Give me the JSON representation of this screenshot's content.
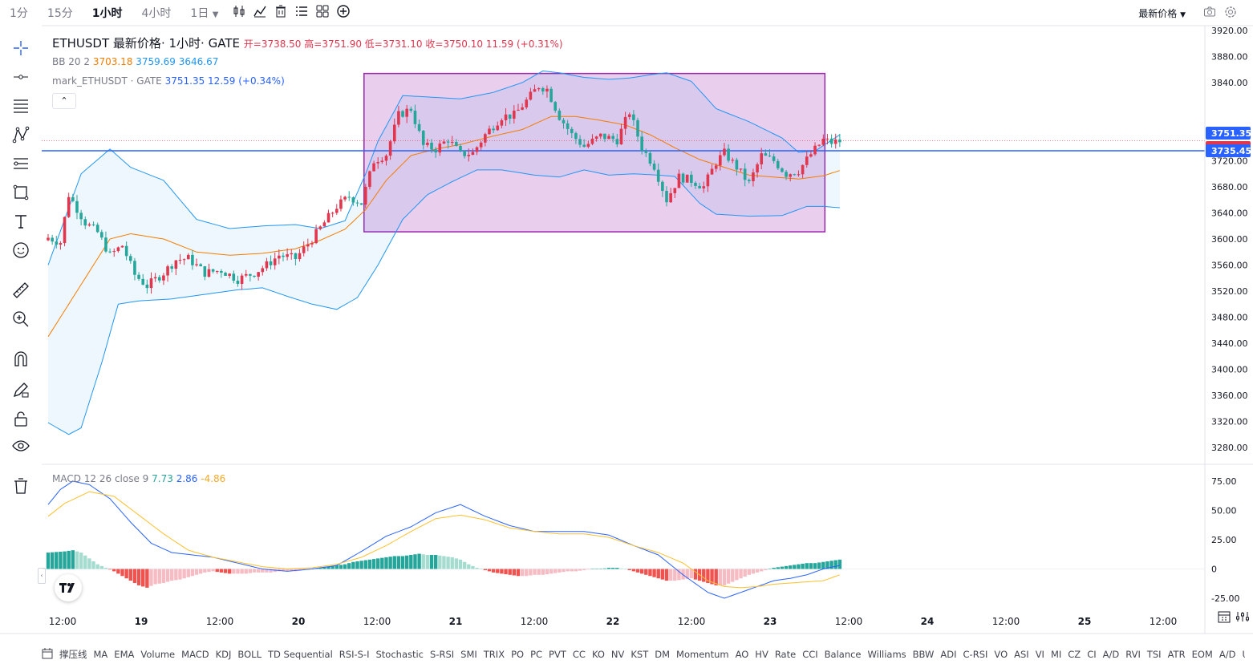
{
  "toolbar": {
    "intervals": [
      "1分",
      "15分",
      "1小时",
      "4小时",
      "1日"
    ],
    "active_interval": "1小时",
    "price_type": "最新价格"
  },
  "legend": {
    "symbol": "ETHUSDT",
    "price_kind": "最新价格",
    "interval": "1小时",
    "exchange": "GATE",
    "open": "开=3738.50",
    "high": "高=3751.90",
    "low": "低=3731.10",
    "close": "收=3750.10",
    "change": "11.59 (+0.31%)",
    "bb_label": "BB 20 2",
    "bb_mid": "3703.18",
    "bb_upper": "3759.69",
    "bb_lower": "3646.67",
    "mark_label": "mark_ETHUSDT · GATE",
    "mark_price": "3751.35",
    "mark_change": "12.59 (+0.34%)",
    "macd_label": "MACD 12 26 close 9",
    "macd_hist": "7.73",
    "macd_line": "2.86",
    "macd_signal": "-4.86"
  },
  "price_tags": {
    "mark": "3751.35",
    "last": "3750.10",
    "hline": "3735.45"
  },
  "colors": {
    "up": "#e0364e",
    "down": "#26a69a",
    "bb_band": "#2196f3",
    "bb_mid": "#f57c00",
    "hline": "#2962ff",
    "rect_border": "#9c27b0",
    "rect_fill": "#e1bee7",
    "macd_line": "#2962ff",
    "signal_line": "#fbc02d"
  },
  "icons": [
    "crosshair-icon",
    "trend-line-icon",
    "fib-icon",
    "pattern-icon",
    "measure-lines-icon",
    "rectangle-icon",
    "text-icon",
    "emoji-icon",
    "ruler-icon",
    "zoom-icon",
    "magnet-icon",
    "lock-drawing-icon",
    "lock-icon",
    "eye-icon",
    "trash-icon"
  ],
  "bottom_indicators": [
    "撑压线",
    "MA",
    "EMA",
    "Volume",
    "MACD",
    "KDJ",
    "BOLL",
    "TD Sequential",
    "RSI-S-I",
    "Stochastic",
    "S-RSI",
    "SMI",
    "TRIX",
    "PO",
    "PC",
    "PVT",
    "CC",
    "KO",
    "NV",
    "KST",
    "DM",
    "Momentum",
    "AO",
    "HV",
    "Rate",
    "CCI",
    "Balance",
    "Williams",
    "BBW",
    "ADI",
    "C-RSI",
    "VO",
    "ASI",
    "VI",
    "MI",
    "CZ",
    "CI",
    "A/D",
    "RVI",
    "TSI",
    "ATR",
    "EOM",
    "A/D",
    "U"
  ],
  "chart_data": {
    "type": "candlestick",
    "price_axis": {
      "ticks": [
        "3920.00",
        "3880.00",
        "3840.00",
        "3760.00",
        "3720.00",
        "3680.00",
        "3640.00",
        "3600.00",
        "3560.00",
        "3520.00",
        "3480.00",
        "3440.00",
        "3400.00",
        "3360.00",
        "3320.00",
        "3280.00"
      ],
      "ylim": [
        3265,
        3925
      ]
    },
    "time_axis": {
      "ticks": [
        "12:00",
        "19",
        "12:00",
        "20",
        "12:00",
        "21",
        "12:00",
        "22",
        "12:00",
        "23",
        "12:00",
        "24",
        "12:00",
        "25",
        "12:00"
      ]
    },
    "macd_axis": {
      "ticks": [
        "75.00",
        "50.00",
        "25.00",
        "0",
        "-25.00"
      ],
      "ylim": [
        -40,
        80
      ]
    },
    "anchors_close": [
      [
        0,
        3602
      ],
      [
        3,
        3595
      ],
      [
        5,
        3668
      ],
      [
        9,
        3625
      ],
      [
        12,
        3610
      ],
      [
        15,
        3575
      ],
      [
        18,
        3590
      ],
      [
        21,
        3545
      ],
      [
        24,
        3528
      ],
      [
        28,
        3548
      ],
      [
        31,
        3568
      ],
      [
        34,
        3570
      ],
      [
        38,
        3548
      ],
      [
        42,
        3552
      ],
      [
        46,
        3538
      ],
      [
        50,
        3548
      ],
      [
        53,
        3560
      ],
      [
        56,
        3575
      ],
      [
        60,
        3570
      ],
      [
        64,
        3600
      ],
      [
        67,
        3625
      ],
      [
        70,
        3650
      ],
      [
        73,
        3665
      ],
      [
        76,
        3655
      ],
      [
        79,
        3720
      ],
      [
        82,
        3730
      ],
      [
        85,
        3790
      ],
      [
        88,
        3800
      ],
      [
        91,
        3743
      ],
      [
        94,
        3738
      ],
      [
        97,
        3753
      ],
      [
        100,
        3730
      ],
      [
        103,
        3732
      ],
      [
        106,
        3760
      ],
      [
        110,
        3788
      ],
      [
        113,
        3790
      ],
      [
        116,
        3812
      ],
      [
        119,
        3835
      ],
      [
        121,
        3830
      ],
      [
        124,
        3788
      ],
      [
        127,
        3760
      ],
      [
        130,
        3742
      ],
      [
        134,
        3758
      ],
      [
        138,
        3752
      ],
      [
        141,
        3795
      ],
      [
        144,
        3740
      ],
      [
        147,
        3712
      ],
      [
        150,
        3660
      ],
      [
        153,
        3695
      ],
      [
        156,
        3690
      ],
      [
        159,
        3680
      ],
      [
        162,
        3718
      ],
      [
        164,
        3732
      ],
      [
        167,
        3710
      ],
      [
        170,
        3685
      ],
      [
        173,
        3728
      ],
      [
        176,
        3720
      ],
      [
        179,
        3700
      ],
      [
        182,
        3705
      ],
      [
        185,
        3730
      ],
      [
        188,
        3752
      ],
      [
        190,
        3748
      ],
      [
        192,
        3750
      ]
    ],
    "bb_upper": [
      [
        0,
        3560
      ],
      [
        8,
        3700
      ],
      [
        15,
        3738
      ],
      [
        20,
        3710
      ],
      [
        28,
        3690
      ],
      [
        36,
        3630
      ],
      [
        44,
        3616
      ],
      [
        52,
        3620
      ],
      [
        60,
        3622
      ],
      [
        66,
        3616
      ],
      [
        72,
        3628
      ],
      [
        77,
        3700
      ],
      [
        80,
        3750
      ],
      [
        86,
        3820
      ],
      [
        92,
        3818
      ],
      [
        100,
        3815
      ],
      [
        108,
        3825
      ],
      [
        115,
        3840
      ],
      [
        120,
        3858
      ],
      [
        124,
        3855
      ],
      [
        130,
        3848
      ],
      [
        136,
        3845
      ],
      [
        141,
        3847
      ],
      [
        146,
        3852
      ],
      [
        150,
        3855
      ],
      [
        156,
        3842
      ],
      [
        162,
        3800
      ],
      [
        170,
        3780
      ],
      [
        178,
        3755
      ],
      [
        182,
        3733
      ],
      [
        186,
        3735
      ],
      [
        192,
        3760
      ]
    ],
    "bb_mid": [
      [
        0,
        3450
      ],
      [
        8,
        3530
      ],
      [
        15,
        3600
      ],
      [
        20,
        3608
      ],
      [
        28,
        3600
      ],
      [
        36,
        3580
      ],
      [
        44,
        3575
      ],
      [
        52,
        3578
      ],
      [
        60,
        3585
      ],
      [
        66,
        3598
      ],
      [
        72,
        3615
      ],
      [
        77,
        3645
      ],
      [
        82,
        3690
      ],
      [
        88,
        3728
      ],
      [
        94,
        3738
      ],
      [
        100,
        3745
      ],
      [
        108,
        3758
      ],
      [
        115,
        3768
      ],
      [
        122,
        3788
      ],
      [
        128,
        3788
      ],
      [
        134,
        3782
      ],
      [
        140,
        3775
      ],
      [
        146,
        3760
      ],
      [
        152,
        3740
      ],
      [
        158,
        3722
      ],
      [
        164,
        3710
      ],
      [
        170,
        3698
      ],
      [
        176,
        3695
      ],
      [
        182,
        3692
      ],
      [
        188,
        3697
      ],
      [
        192,
        3705
      ]
    ],
    "bb_lower": [
      [
        0,
        3318
      ],
      [
        5,
        3300
      ],
      [
        8,
        3310
      ],
      [
        13,
        3410
      ],
      [
        17,
        3500
      ],
      [
        22,
        3505
      ],
      [
        30,
        3508
      ],
      [
        38,
        3515
      ],
      [
        46,
        3522
      ],
      [
        52,
        3525
      ],
      [
        58,
        3512
      ],
      [
        64,
        3500
      ],
      [
        70,
        3492
      ],
      [
        75,
        3510
      ],
      [
        80,
        3560
      ],
      [
        86,
        3630
      ],
      [
        92,
        3668
      ],
      [
        98,
        3688
      ],
      [
        104,
        3706
      ],
      [
        110,
        3706
      ],
      [
        118,
        3698
      ],
      [
        124,
        3695
      ],
      [
        130,
        3706
      ],
      [
        136,
        3698
      ],
      [
        142,
        3700
      ],
      [
        148,
        3698
      ],
      [
        152,
        3696
      ],
      [
        158,
        3655
      ],
      [
        162,
        3638
      ],
      [
        170,
        3635
      ],
      [
        178,
        3636
      ],
      [
        184,
        3650
      ],
      [
        188,
        3650
      ],
      [
        192,
        3648
      ]
    ],
    "macd_line": [
      [
        0,
        55
      ],
      [
        3,
        68
      ],
      [
        6,
        75
      ],
      [
        10,
        72
      ],
      [
        15,
        60
      ],
      [
        20,
        40
      ],
      [
        25,
        22
      ],
      [
        30,
        14
      ],
      [
        35,
        12
      ],
      [
        40,
        10
      ],
      [
        46,
        5
      ],
      [
        52,
        0
      ],
      [
        58,
        -2
      ],
      [
        64,
        0
      ],
      [
        70,
        3
      ],
      [
        76,
        15
      ],
      [
        82,
        28
      ],
      [
        88,
        36
      ],
      [
        94,
        48
      ],
      [
        100,
        55
      ],
      [
        106,
        45
      ],
      [
        112,
        37
      ],
      [
        118,
        32
      ],
      [
        124,
        32
      ],
      [
        130,
        32
      ],
      [
        136,
        29
      ],
      [
        142,
        20
      ],
      [
        148,
        12
      ],
      [
        154,
        -5
      ],
      [
        160,
        -20
      ],
      [
        164,
        -25
      ],
      [
        168,
        -20
      ],
      [
        172,
        -15
      ],
      [
        176,
        -10
      ],
      [
        180,
        -8
      ],
      [
        184,
        -5
      ],
      [
        188,
        0
      ],
      [
        192,
        3
      ]
    ],
    "signal_line": [
      [
        0,
        45
      ],
      [
        4,
        56
      ],
      [
        10,
        66
      ],
      [
        16,
        62
      ],
      [
        22,
        46
      ],
      [
        28,
        30
      ],
      [
        34,
        16
      ],
      [
        40,
        10
      ],
      [
        46,
        6
      ],
      [
        52,
        2
      ],
      [
        58,
        0
      ],
      [
        64,
        1
      ],
      [
        70,
        4
      ],
      [
        76,
        10
      ],
      [
        82,
        20
      ],
      [
        88,
        32
      ],
      [
        94,
        43
      ],
      [
        100,
        46
      ],
      [
        106,
        42
      ],
      [
        112,
        35
      ],
      [
        118,
        32
      ],
      [
        124,
        30
      ],
      [
        130,
        30
      ],
      [
        136,
        27
      ],
      [
        142,
        20
      ],
      [
        148,
        14
      ],
      [
        154,
        5
      ],
      [
        160,
        -10
      ],
      [
        164,
        -15
      ],
      [
        168,
        -16
      ],
      [
        172,
        -15
      ],
      [
        176,
        -13
      ],
      [
        180,
        -12
      ],
      [
        184,
        -11
      ],
      [
        188,
        -10
      ],
      [
        192,
        -5
      ]
    ],
    "macd_hist": [
      [
        0,
        14
      ],
      [
        4,
        15
      ],
      [
        6,
        16
      ],
      [
        8,
        14
      ],
      [
        10,
        9
      ],
      [
        12,
        4
      ],
      [
        14,
        1
      ],
      [
        16,
        -2
      ],
      [
        18,
        -6
      ],
      [
        20,
        -10
      ],
      [
        22,
        -14
      ],
      [
        24,
        -16
      ],
      [
        26,
        -13
      ],
      [
        28,
        -12
      ],
      [
        30,
        -10
      ],
      [
        32,
        -9
      ],
      [
        34,
        -7
      ],
      [
        36,
        -5
      ],
      [
        38,
        -3
      ],
      [
        40,
        -2
      ],
      [
        42,
        -3
      ],
      [
        44,
        -4
      ],
      [
        46,
        -4
      ],
      [
        48,
        -4
      ],
      [
        50,
        -3
      ],
      [
        52,
        -3
      ],
      [
        54,
        -3
      ],
      [
        56,
        -2
      ],
      [
        58,
        -2
      ],
      [
        60,
        -2
      ],
      [
        62,
        -1
      ],
      [
        64,
        0
      ],
      [
        66,
        1
      ],
      [
        68,
        2
      ],
      [
        70,
        3
      ],
      [
        72,
        4
      ],
      [
        74,
        6
      ],
      [
        76,
        7
      ],
      [
        78,
        8
      ],
      [
        80,
        9
      ],
      [
        82,
        10
      ],
      [
        84,
        11
      ],
      [
        86,
        11
      ],
      [
        88,
        12
      ],
      [
        90,
        13
      ],
      [
        92,
        12
      ],
      [
        94,
        12
      ],
      [
        96,
        11
      ],
      [
        98,
        10
      ],
      [
        100,
        8
      ],
      [
        102,
        4
      ],
      [
        104,
        1
      ],
      [
        106,
        -1
      ],
      [
        108,
        -3
      ],
      [
        110,
        -4
      ],
      [
        112,
        -5
      ],
      [
        114,
        -6
      ],
      [
        116,
        -6
      ],
      [
        118,
        -5
      ],
      [
        120,
        -5
      ],
      [
        122,
        -4
      ],
      [
        124,
        -3
      ],
      [
        126,
        -2
      ],
      [
        128,
        -2
      ],
      [
        130,
        -1
      ],
      [
        132,
        0
      ],
      [
        134,
        0
      ],
      [
        136,
        1
      ],
      [
        138,
        1
      ],
      [
        140,
        0
      ],
      [
        142,
        -2
      ],
      [
        144,
        -4
      ],
      [
        146,
        -6
      ],
      [
        148,
        -8
      ],
      [
        150,
        -10
      ],
      [
        152,
        -10
      ],
      [
        154,
        -9
      ],
      [
        156,
        -8
      ],
      [
        158,
        -10
      ],
      [
        160,
        -12
      ],
      [
        162,
        -14
      ],
      [
        164,
        -14
      ],
      [
        166,
        -11
      ],
      [
        168,
        -8
      ],
      [
        170,
        -5
      ],
      [
        172,
        -3
      ],
      [
        174,
        -1
      ],
      [
        176,
        1
      ],
      [
        178,
        2
      ],
      [
        180,
        3
      ],
      [
        182,
        4
      ],
      [
        184,
        5
      ],
      [
        186,
        5
      ],
      [
        188,
        6
      ],
      [
        190,
        7
      ],
      [
        192,
        8
      ]
    ],
    "rectangle": {
      "x_from": 77,
      "x_to": 188,
      "y_from": 3611,
      "y_to": 3854
    },
    "hline": 3735.45,
    "last_bar_index": 192
  }
}
